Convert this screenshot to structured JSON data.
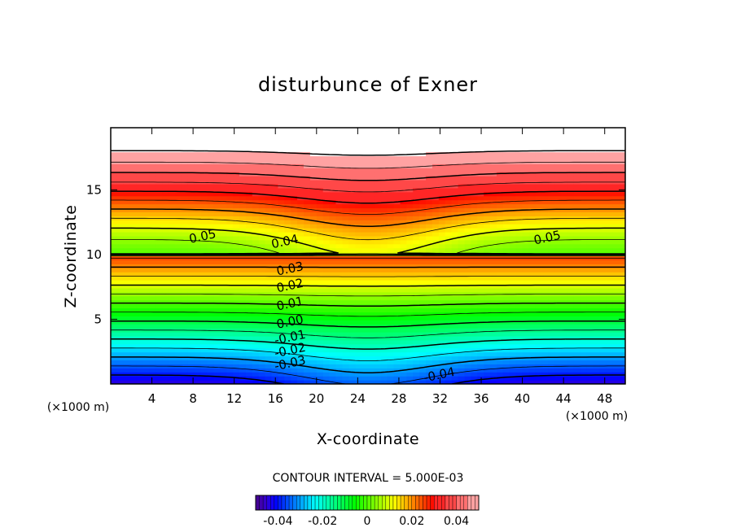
{
  "chart_data": {
    "type": "contour",
    "title": "disturbunce of Exner",
    "xlabel": "X-coordinate",
    "ylabel": "Z-coordinate",
    "x_unit": "(×1000 m)",
    "y_unit": "(×1000 m)",
    "xlim": [
      0,
      50
    ],
    "ylim": [
      0,
      19.8
    ],
    "x_ticks": [
      4,
      8,
      12,
      16,
      20,
      24,
      28,
      32,
      36,
      40,
      44,
      48
    ],
    "y_ticks": [
      5,
      10,
      15
    ],
    "contour_interval_text": "CONTOUR INTERVAL = 5.000E-03",
    "contour_interval": 0.005,
    "value_range": [
      -0.045,
      0.055
    ],
    "contour_labels": [
      {
        "text": "0.05",
        "x": 9,
        "z": 11.1
      },
      {
        "text": "0.05",
        "x": 42.5,
        "z": 11.0
      },
      {
        "text": "0.04",
        "x": 17,
        "z": 10.7
      },
      {
        "text": "0.03",
        "x": 17.5,
        "z": 8.6
      },
      {
        "text": "0.02",
        "x": 17.5,
        "z": 7.3
      },
      {
        "text": "0.01",
        "x": 17.5,
        "z": 5.9
      },
      {
        "text": "0.00",
        "x": 17.5,
        "z": 4.5
      },
      {
        "text": "-0.01",
        "x": 17.5,
        "z": 3.3
      },
      {
        "text": "-0.02",
        "x": 17.5,
        "z": 2.3
      },
      {
        "text": "-0.03",
        "x": 17.5,
        "z": 1.3
      },
      {
        "text": "-0.04",
        "x": 32,
        "z": 0.4
      }
    ],
    "colorbar": {
      "ticks": [
        "-0.04",
        "-0.02",
        "0",
        "0.02",
        "0.04"
      ],
      "tick_values": [
        -0.04,
        -0.02,
        0,
        0.02,
        0.04
      ],
      "range": [
        -0.05,
        0.05
      ]
    }
  }
}
